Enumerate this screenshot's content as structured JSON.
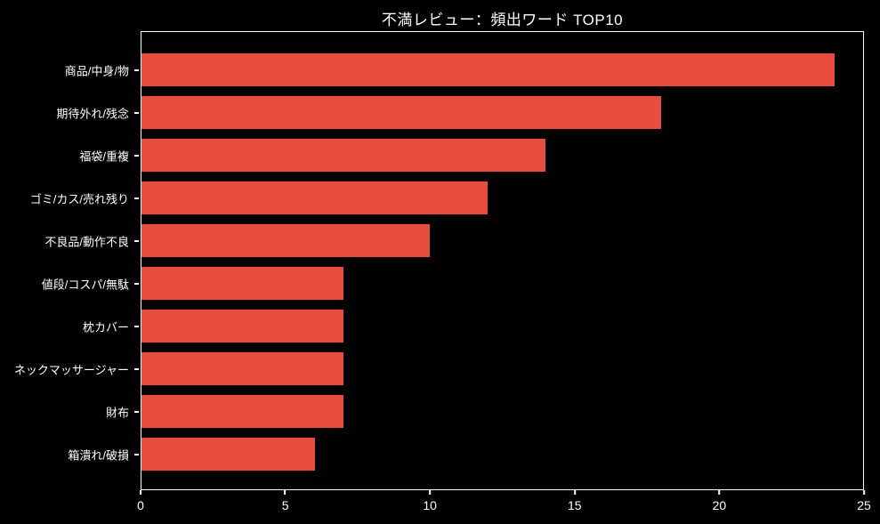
{
  "chart_data": {
    "type": "bar",
    "orientation": "horizontal",
    "title": "不満レビュー：頻出ワード TOP10",
    "categories": [
      "商品/中身/物",
      "期待外れ/残念",
      "福袋/重複",
      "ゴミ/カス/売れ残り",
      "不良品/動作不良",
      "値段/コスパ/無駄",
      "枕カバー",
      "ネックマッサージャー",
      "財布",
      "箱潰れ/破損"
    ],
    "values": [
      24,
      18,
      14,
      12,
      10,
      7,
      7,
      7,
      7,
      6
    ],
    "xlabel": "",
    "ylabel": "",
    "xlim": [
      0,
      25
    ],
    "xticks": [
      0,
      5,
      10,
      15,
      20,
      25
    ],
    "grid": false,
    "legend_position": "none",
    "colors": {
      "background": "#000000",
      "bar": "#e74c3c",
      "text": "#ffffff",
      "axis": "#ffffff"
    }
  }
}
